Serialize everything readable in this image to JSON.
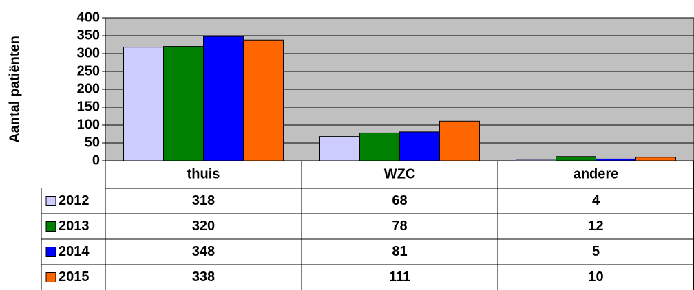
{
  "chart_data": {
    "type": "bar",
    "y_label": "Aantal patiënten",
    "categories": [
      "thuis",
      "WZC",
      "andere"
    ],
    "series": [
      {
        "name": "2012",
        "color": "#ccccff",
        "values": [
          318,
          68,
          4
        ]
      },
      {
        "name": "2013",
        "color": "#008000",
        "values": [
          320,
          78,
          12
        ]
      },
      {
        "name": "2014",
        "color": "#0000ff",
        "values": [
          348,
          81,
          5
        ]
      },
      {
        "name": "2015",
        "color": "#ff6600",
        "values": [
          338,
          111,
          10
        ]
      }
    ],
    "ylim": [
      0,
      400
    ],
    "yticks": [
      0,
      50,
      100,
      150,
      200,
      250,
      300,
      350,
      400
    ],
    "grid": true,
    "plot_background": "#c0c0c0"
  }
}
